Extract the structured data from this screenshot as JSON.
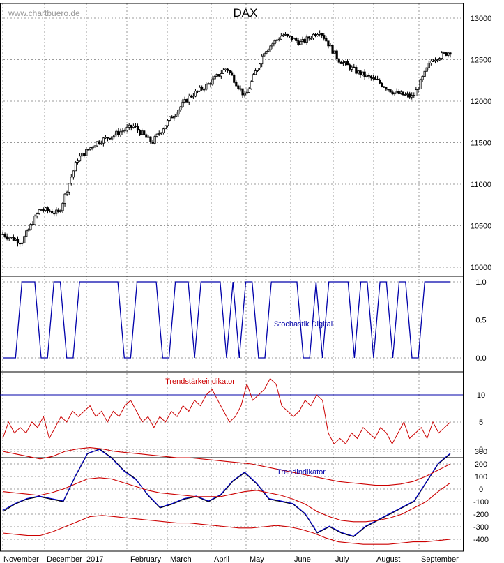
{
  "watermark": "www.chartbuero.de",
  "chart_data": [
    {
      "type": "candlestick",
      "title": "DAX",
      "y_ticks": [
        10000,
        10500,
        11000,
        11500,
        12000,
        12500,
        13000
      ],
      "ylim": [
        10000,
        13100
      ],
      "x_labels": [
        "November",
        "December",
        "2017",
        "February",
        "March",
        "April",
        "May",
        "June",
        "July",
        "August",
        "September"
      ],
      "approx_closes": [
        10400,
        10300,
        10700,
        10650,
        11300,
        11500,
        11600,
        11700,
        11500,
        11800,
        12050,
        12200,
        12400,
        12050,
        12600,
        12800,
        12700,
        12850,
        12500,
        12350,
        12250,
        12100,
        12050,
        12500,
        12600
      ],
      "grid": true
    },
    {
      "type": "line",
      "title": "Stochastik Digital",
      "y_ticks": [
        "0.0",
        "0.5",
        "1.0"
      ],
      "ylim": [
        0,
        1
      ],
      "series": [
        {
          "color": "#0000aa",
          "values": [
            0,
            0,
            0,
            1,
            1,
            1,
            0,
            0,
            1,
            1,
            0,
            0,
            1,
            1,
            1,
            1,
            1,
            1,
            1,
            0,
            0,
            1,
            1,
            1,
            1,
            0,
            0,
            1,
            1,
            1,
            0,
            1,
            1,
            1,
            1,
            0,
            1,
            0,
            1,
            1,
            0,
            0,
            1,
            1,
            1,
            1,
            1,
            0,
            0,
            1,
            0,
            1,
            1,
            1,
            1,
            0,
            1,
            1,
            0,
            1,
            1,
            0,
            1,
            1,
            0,
            0,
            1,
            1,
            1,
            1,
            1
          ]
        }
      ],
      "grid": true
    },
    {
      "type": "line",
      "title": "Trendstärkeindikator",
      "y_ticks": [
        "0",
        "5",
        "10"
      ],
      "ylim": [
        -1,
        14
      ],
      "reference_line": 10,
      "series": [
        {
          "color": "#cc0000",
          "values": [
            2,
            5,
            3,
            4,
            3,
            5,
            4,
            6,
            2,
            4,
            6,
            5,
            7,
            6,
            7,
            8,
            6,
            7,
            5,
            7,
            6,
            8,
            9,
            7,
            5,
            6,
            4,
            6,
            5,
            7,
            6,
            8,
            7,
            9,
            8,
            10,
            11,
            9,
            7,
            5,
            6,
            8,
            12,
            9,
            10,
            11,
            13,
            12,
            8,
            7,
            6,
            7,
            9,
            8,
            10,
            9,
            3,
            1,
            2,
            1,
            3,
            2,
            4,
            3,
            2,
            4,
            3,
            1,
            3,
            5,
            2,
            3,
            4,
            2,
            5,
            3,
            4,
            5
          ]
        }
      ],
      "grid": true
    },
    {
      "type": "line",
      "title": "Trendindikator",
      "y_ticks": [
        "300",
        "200",
        "100",
        "0",
        "-100",
        "-200",
        "-300",
        "-400"
      ],
      "ylim": [
        -450,
        350
      ],
      "series": [
        {
          "color": "#000000",
          "values": [
            -180,
            -120,
            -80,
            -60,
            -80,
            -100,
            100,
            280,
            320,
            250,
            150,
            80,
            -50,
            -150,
            -120,
            -80,
            -60,
            -100,
            -50,
            60,
            130,
            40,
            -80,
            -100,
            -120,
            -200,
            -350,
            -300,
            -350,
            -380,
            -300,
            -250,
            -200,
            -150,
            -100,
            50,
            200,
            280
          ]
        },
        {
          "color": "#0000cc",
          "values": [
            -170,
            -115,
            -75,
            -55,
            -75,
            -95,
            105,
            285,
            315,
            245,
            145,
            75,
            -45,
            -145,
            -115,
            -75,
            -55,
            -95,
            -45,
            65,
            135,
            45,
            -75,
            -95,
            -115,
            -195,
            -345,
            -295,
            -345,
            -375,
            -295,
            -245,
            -195,
            -145,
            -95,
            55,
            205,
            285
          ]
        },
        {
          "color": "#cc0000",
          "values": [
            300,
            280,
            260,
            240,
            260,
            300,
            320,
            330,
            320,
            300,
            290,
            280,
            270,
            260,
            250,
            250,
            240,
            230,
            220,
            210,
            200,
            180,
            160,
            140,
            120,
            100,
            80,
            60,
            50,
            40,
            30,
            30,
            40,
            60,
            100,
            150,
            200
          ]
        },
        {
          "color": "#cc0000",
          "values": [
            -20,
            -30,
            -40,
            -50,
            -30,
            0,
            40,
            80,
            90,
            80,
            50,
            20,
            -10,
            -30,
            -40,
            -50,
            -60,
            -60,
            -60,
            -40,
            -20,
            -10,
            -30,
            -50,
            -80,
            -120,
            -180,
            -220,
            -250,
            -260,
            -260,
            -250,
            -230,
            -200,
            -150,
            -100,
            -20,
            50
          ]
        },
        {
          "color": "#cc0000",
          "values": [
            -350,
            -360,
            -370,
            -370,
            -340,
            -300,
            -260,
            -220,
            -210,
            -220,
            -230,
            -240,
            -250,
            -260,
            -270,
            -270,
            -280,
            -290,
            -300,
            -310,
            -310,
            -300,
            -290,
            -300,
            -320,
            -350,
            -390,
            -420,
            -430,
            -440,
            -440,
            -440,
            -430,
            -420,
            -420,
            -410,
            -400
          ]
        }
      ],
      "grid": true
    }
  ]
}
